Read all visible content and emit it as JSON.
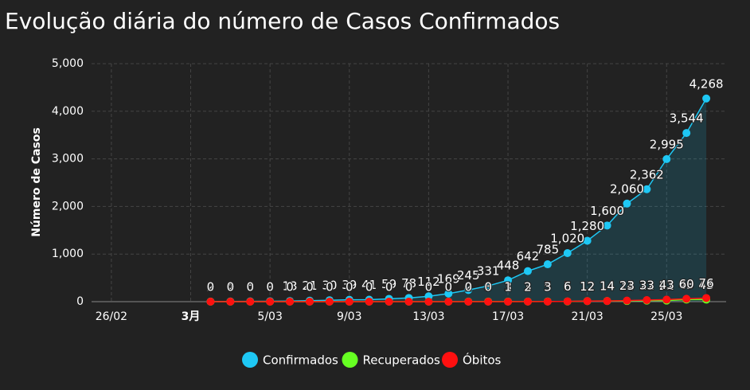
{
  "chart_data": {
    "type": "line",
    "title": "Evolução diária do número de Casos Confirmados",
    "y_label": "Número de Casos",
    "x": [
      "2/03",
      "3/03",
      "4/03",
      "5/03",
      "6/03",
      "7/03",
      "8/03",
      "9/03",
      "10/03",
      "11/03",
      "12/03",
      "13/03",
      "14/03",
      "15/03",
      "16/03",
      "17/03",
      "18/03",
      "19/03",
      "20/03",
      "21/03",
      "22/03",
      "23/03",
      "24/03",
      "25/03",
      "26/03",
      "27/03"
    ],
    "xlim": [
      "25/02",
      "28/03"
    ],
    "xticks": [
      "26/02",
      {
        "value": "1/03",
        "label": "3月"
      },
      "5/03",
      "9/03",
      "13/03",
      "17/03",
      "21/03",
      "25/03"
    ],
    "ylim": [
      0,
      5000
    ],
    "yticks": [
      0,
      {
        "value": 1000,
        "label": "1,000"
      },
      {
        "value": 2000,
        "label": "2,000"
      },
      {
        "value": 3000,
        "label": "3,000"
      },
      {
        "value": 4000,
        "label": "4,000"
      },
      {
        "value": 5000,
        "label": "5,000"
      }
    ],
    "grid": true,
    "legend": "bottom",
    "series": [
      {
        "name": "Confirmados",
        "color": "#1ec8f5",
        "area": true,
        "values": [
          2,
          4,
          6,
          9,
          13,
          21,
          30,
          39,
          41,
          59,
          78,
          112,
          169,
          245,
          331,
          448,
          642,
          785,
          1020,
          1280,
          1600,
          2060,
          2362,
          2995,
          3544,
          4268
        ],
        "value_labels": [
          "2",
          "4",
          "6",
          "9",
          "13",
          "21",
          "30",
          "39",
          "41",
          "59",
          "78",
          "112",
          "169",
          "245",
          "331",
          "448",
          "642",
          "785",
          "1,020",
          "1,280",
          "1,600",
          "2,060",
          "2,362",
          "2,995",
          "3,544",
          "4,268"
        ]
      },
      {
        "name": "Recuperados",
        "color": "#66ff22",
        "values": [
          0,
          0,
          0,
          0,
          0,
          0,
          0,
          0,
          0,
          0,
          0,
          0,
          0,
          2,
          3,
          3,
          3,
          5,
          5,
          12,
          14,
          14,
          22,
          22,
          43,
          43
        ]
      },
      {
        "name": "Óbitos",
        "color": "#ff1010",
        "values": [
          0,
          0,
          0,
          0,
          0,
          0,
          0,
          0,
          0,
          0,
          0,
          0,
          0,
          0,
          0,
          1,
          2,
          3,
          6,
          12,
          14,
          23,
          33,
          43,
          60,
          76
        ]
      }
    ]
  }
}
